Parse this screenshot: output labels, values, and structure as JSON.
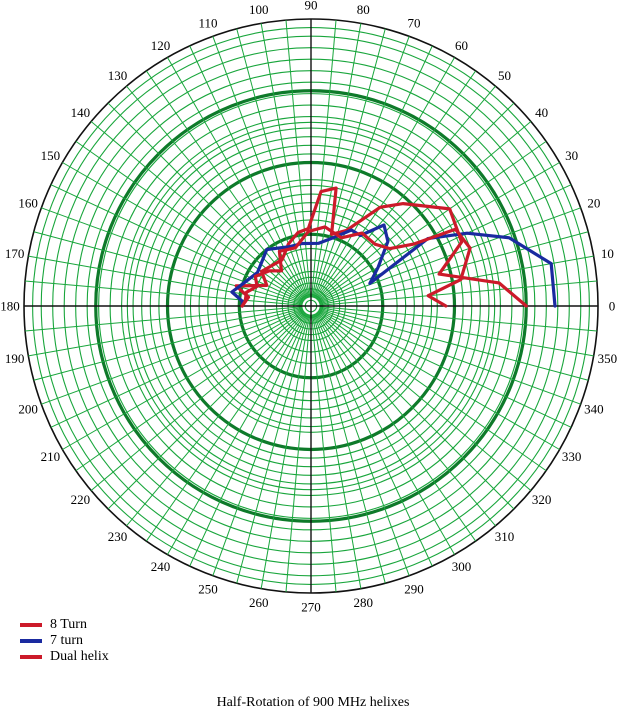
{
  "chart_data": {
    "type": "polar-line",
    "title": "Half-Rotation of 900 MHz helixes",
    "angle_ticks": [
      "0",
      "10",
      "20",
      "30",
      "40",
      "50",
      "60",
      "70",
      "80",
      "90",
      "100",
      "110",
      "120",
      "130",
      "140",
      "150",
      "160",
      "170",
      "180",
      "190",
      "200",
      "210",
      "220",
      "230",
      "240",
      "250",
      "260",
      "270",
      "280",
      "290",
      "300",
      "310",
      "320",
      "330",
      "340",
      "350"
    ],
    "radial_range": [
      0,
      1
    ],
    "grid": true,
    "legend_position": "bottom-left",
    "series": [
      {
        "name": "8 Turn",
        "color": "#cc1a2a",
        "points": [
          [
            0,
            0.75
          ],
          [
            7,
            0.66
          ],
          [
            14,
            0.46
          ],
          [
            23,
            0.57
          ],
          [
            35,
            0.59
          ],
          [
            48,
            0.48
          ],
          [
            55,
            0.42
          ],
          [
            65,
            0.29
          ],
          [
            74,
            0.26
          ],
          [
            78,
            0.42
          ],
          [
            85,
            0.4
          ],
          [
            92,
            0.27
          ],
          [
            100,
            0.26
          ],
          [
            110,
            0.23
          ],
          [
            122,
            0.19
          ],
          [
            145,
            0.21
          ],
          [
            155,
            0.17
          ],
          [
            165,
            0.27
          ],
          [
            172,
            0.22
          ],
          [
            180,
            0.24
          ]
        ]
      },
      {
        "name": "7 turn",
        "color": "#1a2aa0",
        "points": [
          [
            0,
            0.85
          ],
          [
            10,
            0.85
          ],
          [
            19,
            0.73
          ],
          [
            25,
            0.6
          ],
          [
            30,
            0.47
          ],
          [
            21,
            0.22
          ],
          [
            30,
            0.27
          ],
          [
            40,
            0.35
          ],
          [
            48,
            0.38
          ],
          [
            55,
            0.3
          ],
          [
            62,
            0.3
          ],
          [
            72,
            0.25
          ],
          [
            83,
            0.22
          ],
          [
            98,
            0.22
          ],
          [
            110,
            0.22
          ],
          [
            128,
            0.25
          ],
          [
            148,
            0.22
          ],
          [
            162,
            0.25
          ],
          [
            170,
            0.28
          ],
          [
            176,
            0.24
          ],
          [
            180,
            0.24
          ]
        ]
      },
      {
        "name": "Dual helix",
        "color": "#cc1a2a",
        "points": [
          [
            0,
            0.47
          ],
          [
            5,
            0.41
          ],
          [
            10,
            0.53
          ],
          [
            20,
            0.59
          ],
          [
            28,
            0.57
          ],
          [
            31,
            0.42
          ],
          [
            36,
            0.34
          ],
          [
            44,
            0.31
          ],
          [
            55,
            0.31
          ],
          [
            66,
            0.26
          ],
          [
            80,
            0.28
          ],
          [
            92,
            0.26
          ],
          [
            105,
            0.21
          ],
          [
            120,
            0.22
          ],
          [
            130,
            0.16
          ],
          [
            140,
            0.19
          ],
          [
            152,
            0.22
          ],
          [
            160,
            0.2
          ],
          [
            168,
            0.23
          ],
          [
            176,
            0.23
          ],
          [
            180,
            0.24
          ]
        ]
      }
    ]
  }
}
